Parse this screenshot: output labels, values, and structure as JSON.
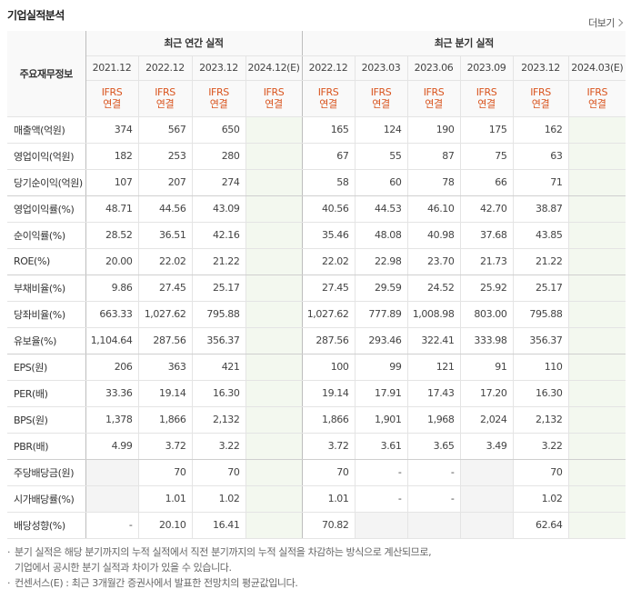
{
  "header": {
    "title": "기업실적분석",
    "more_label": "더보기"
  },
  "table": {
    "corner_label": "주요재무정보",
    "groups": {
      "annual": "최근 연간 실적",
      "quarter": "최근 분기 실적"
    },
    "periods": [
      "2021.12",
      "2022.12",
      "2023.12",
      "2024.12(E)",
      "2022.12",
      "2023.03",
      "2023.06",
      "2023.09",
      "2023.12",
      "2024.03(E)"
    ],
    "basis_line1": "IFRS",
    "basis_line2": "연결",
    "rows": [
      {
        "label": "매출액(억원)",
        "values": [
          "374",
          "567",
          "650",
          "",
          "165",
          "124",
          "190",
          "175",
          "162",
          ""
        ]
      },
      {
        "label": "영업이익(억원)",
        "values": [
          "182",
          "253",
          "280",
          "",
          "67",
          "55",
          "87",
          "75",
          "63",
          ""
        ]
      },
      {
        "label": "당기순이익(억원)",
        "values": [
          "107",
          "207",
          "274",
          "",
          "58",
          "60",
          "78",
          "66",
          "71",
          ""
        ]
      },
      {
        "label": "영업이익률(%)",
        "values": [
          "48.71",
          "44.56",
          "43.09",
          "",
          "40.56",
          "44.53",
          "46.10",
          "42.70",
          "38.87",
          ""
        ]
      },
      {
        "label": "순이익률(%)",
        "values": [
          "28.52",
          "36.51",
          "42.16",
          "",
          "35.46",
          "48.08",
          "40.98",
          "37.68",
          "43.85",
          ""
        ]
      },
      {
        "label": "ROE(%)",
        "values": [
          "20.00",
          "22.02",
          "21.22",
          "",
          "22.02",
          "22.98",
          "23.70",
          "21.73",
          "21.22",
          ""
        ]
      },
      {
        "label": "부채비율(%)",
        "values": [
          "9.86",
          "27.45",
          "25.17",
          "",
          "27.45",
          "29.59",
          "24.52",
          "25.92",
          "25.17",
          ""
        ]
      },
      {
        "label": "당좌비율(%)",
        "values": [
          "663.33",
          "1,027.62",
          "795.88",
          "",
          "1,027.62",
          "777.89",
          "1,008.98",
          "803.00",
          "795.88",
          ""
        ]
      },
      {
        "label": "유보율(%)",
        "values": [
          "1,104.64",
          "287.56",
          "356.37",
          "",
          "287.56",
          "293.46",
          "322.41",
          "333.98",
          "356.37",
          ""
        ]
      },
      {
        "label": "EPS(원)",
        "values": [
          "206",
          "363",
          "421",
          "",
          "100",
          "99",
          "121",
          "91",
          "110",
          ""
        ]
      },
      {
        "label": "PER(배)",
        "values": [
          "33.36",
          "19.14",
          "16.30",
          "",
          "19.14",
          "17.91",
          "17.43",
          "17.20",
          "16.30",
          ""
        ]
      },
      {
        "label": "BPS(원)",
        "values": [
          "1,378",
          "1,866",
          "2,132",
          "",
          "1,866",
          "1,901",
          "1,968",
          "2,024",
          "2,132",
          ""
        ]
      },
      {
        "label": "PBR(배)",
        "values": [
          "4.99",
          "3.72",
          "3.22",
          "",
          "3.72",
          "3.61",
          "3.65",
          "3.49",
          "3.22",
          ""
        ]
      },
      {
        "label": "주당배당금(원)",
        "values": [
          "",
          "70",
          "70",
          "",
          "70",
          "-",
          "-",
          "",
          "70",
          ""
        ]
      },
      {
        "label": "시가배당률(%)",
        "values": [
          "",
          "1.01",
          "1.02",
          "",
          "1.01",
          "-",
          "-",
          "",
          "1.02",
          ""
        ]
      },
      {
        "label": "배당성향(%)",
        "values": [
          "-",
          "20.10",
          "16.41",
          "",
          "70.82",
          "",
          "",
          "",
          "62.64",
          ""
        ]
      }
    ]
  },
  "notes": [
    "분기 실적은 해당 분기까지의 누적 실적에서 직전 분기까지의 누적 실적을 차감하는 방식으로 계산되므로,",
    "기업에서 공시한 분기 실적과 차이가 있을 수 있습니다.",
    "컨센서스(E) : 최근 3개월간 증권사에서 발표한 전망치의 평균값입니다."
  ],
  "colors": {
    "basis": "#d9541e",
    "estimate_bg": "#f3f8ef",
    "empty_bg": "#f4f4f4"
  }
}
